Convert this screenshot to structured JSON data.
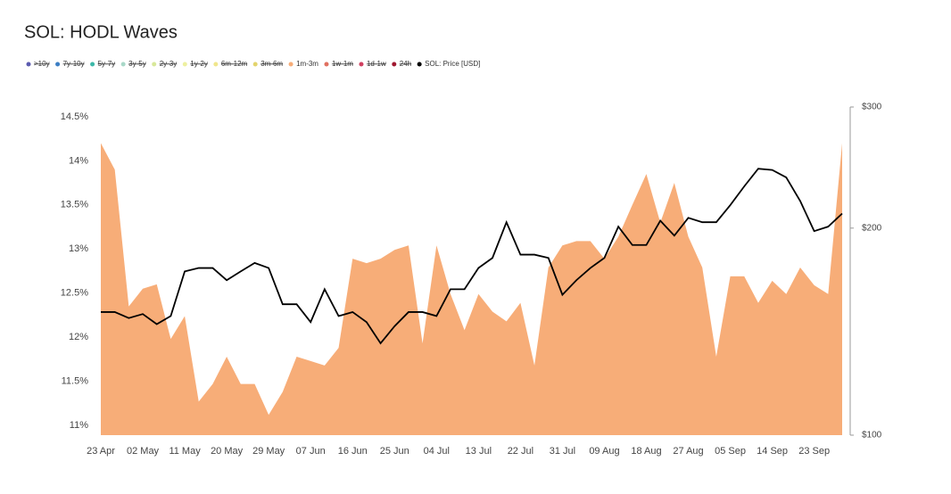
{
  "chart_data": {
    "type": "area-line",
    "title": "SOL: HODL Waves",
    "categories": [
      "23 Apr",
      null,
      null,
      "02 May",
      null,
      null,
      "11 May",
      null,
      null,
      "20 May",
      null,
      null,
      "29 May",
      null,
      null,
      "07 Jun",
      null,
      null,
      "16 Jun",
      null,
      null,
      "25 Jun",
      null,
      null,
      "04 Jul",
      null,
      null,
      "13 Jul",
      null,
      null,
      "22 Jul",
      null,
      null,
      "31 Jul",
      null,
      null,
      "09 Aug",
      null,
      null,
      "18 Aug",
      null,
      null,
      "27 Aug",
      null,
      null,
      "05 Sep",
      null,
      null,
      "14 Sep",
      null,
      null,
      "23 Sep",
      null,
      null
    ],
    "series": [
      {
        "name": ">10y",
        "color": "#5b5bb0",
        "hidden": true
      },
      {
        "name": "7y-10y",
        "color": "#3d7fc4",
        "hidden": true
      },
      {
        "name": "5y-7y",
        "color": "#3cb8a8",
        "hidden": true
      },
      {
        "name": "3y-5y",
        "color": "#a8d8c8",
        "hidden": true
      },
      {
        "name": "2y-3y",
        "color": "#d8e89a",
        "hidden": true
      },
      {
        "name": "1y-2y",
        "color": "#eef0a0",
        "hidden": true
      },
      {
        "name": "6m-12m",
        "color": "#f0e68c",
        "hidden": true
      },
      {
        "name": "3m-6m",
        "color": "#e3d46c",
        "hidden": true
      },
      {
        "name": "1m-3m",
        "color": "#f7ad78",
        "values": [
          14.2,
          13.9,
          12.35,
          12.55,
          12.6,
          11.98,
          12.24,
          11.27,
          11.47,
          11.78,
          11.47,
          11.47,
          11.12,
          11.38,
          11.78,
          11.73,
          11.68,
          11.88,
          12.89,
          12.84,
          12.89,
          12.99,
          13.04,
          11.93,
          13.04,
          12.49,
          12.08,
          12.49,
          12.29,
          12.18,
          12.39,
          11.68,
          12.79,
          13.04,
          13.09,
          13.09,
          12.89,
          13.14,
          13.5,
          13.85,
          13.3,
          13.75,
          13.14,
          12.79,
          11.78,
          12.69,
          12.69,
          12.39,
          12.64,
          12.49,
          12.79,
          12.59,
          12.49,
          14.2
        ]
      },
      {
        "name": "1w-1m",
        "color": "#e07060",
        "hidden": true
      },
      {
        "name": "1d-1w",
        "color": "#d04060",
        "hidden": true
      },
      {
        "name": "24h",
        "color": "#a01830",
        "hidden": true
      },
      {
        "name": "SOL: Price [USD]",
        "color": "#000000",
        "axis": "y2",
        "values": [
          151,
          151,
          148,
          150,
          145,
          149,
          173,
          175,
          175,
          168,
          173,
          178,
          175,
          155,
          155,
          146,
          163,
          149,
          151,
          146,
          136,
          144,
          151,
          151,
          149,
          163,
          163,
          175,
          181,
          204,
          183,
          183,
          181,
          160,
          168,
          175,
          181,
          201,
          189,
          189,
          205,
          195,
          207,
          204,
          204,
          216,
          230,
          244,
          243,
          237,
          219,
          198,
          201,
          210
        ]
      }
    ],
    "ylim": [
      10.89,
      14.61
    ],
    "yticks": [
      {
        "value": 11,
        "label": "11%"
      },
      {
        "value": 11.5,
        "label": "11.5%"
      },
      {
        "value": 12,
        "label": "12%"
      },
      {
        "value": 12.5,
        "label": "12.5%"
      },
      {
        "value": 13,
        "label": "13%"
      },
      {
        "value": 13.5,
        "label": "13.5%"
      },
      {
        "value": 14,
        "label": "14%"
      },
      {
        "value": 14.5,
        "label": "14.5%"
      }
    ],
    "y2lim": [
      100,
      300
    ],
    "y2log": true,
    "y2ticks": [
      {
        "value": 100,
        "label": "$100"
      },
      {
        "value": 200,
        "label": "$200"
      },
      {
        "value": 300,
        "label": "$300"
      }
    ],
    "grid": false,
    "legend": "top-left"
  }
}
